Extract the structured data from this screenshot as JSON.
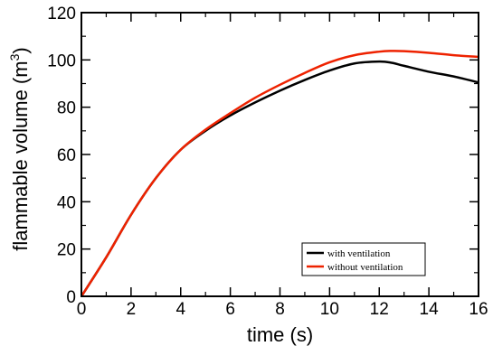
{
  "chart_data": {
    "type": "line",
    "xlabel": "time (s)",
    "ylabel_main": "flammable volume (m",
    "ylabel_sup": "3",
    "ylabel_close": ")",
    "xlim": [
      0,
      16
    ],
    "ylim": [
      0,
      120
    ],
    "xticks": [
      0,
      2,
      4,
      6,
      8,
      10,
      12,
      14,
      16
    ],
    "yticks": [
      0,
      20,
      40,
      60,
      80,
      100,
      120
    ],
    "grid": false,
    "legend_position": "bottom-right",
    "series": [
      {
        "name": "with ventilation",
        "color": "#000000",
        "x": [
          0,
          1,
          2,
          3,
          4,
          5,
          6,
          7,
          8,
          9,
          10,
          11,
          12,
          12.5,
          13,
          14,
          15,
          16
        ],
        "y": [
          0,
          16.5,
          34.5,
          50,
          62,
          70,
          76.5,
          82,
          87,
          91.5,
          95.5,
          98.5,
          99.3,
          98.8,
          97.5,
          95,
          93,
          90.5
        ]
      },
      {
        "name": "without ventilation",
        "color": "#ee2200",
        "x": [
          0,
          1,
          2,
          3,
          4,
          5,
          6,
          7,
          8,
          9,
          10,
          11,
          12,
          12.5,
          13,
          14,
          15,
          16
        ],
        "y": [
          0,
          16.5,
          34.5,
          50,
          62,
          70.5,
          77.5,
          84,
          89.5,
          94.5,
          99,
          102,
          103.5,
          103.8,
          103.7,
          103,
          102,
          101.3
        ]
      }
    ]
  }
}
